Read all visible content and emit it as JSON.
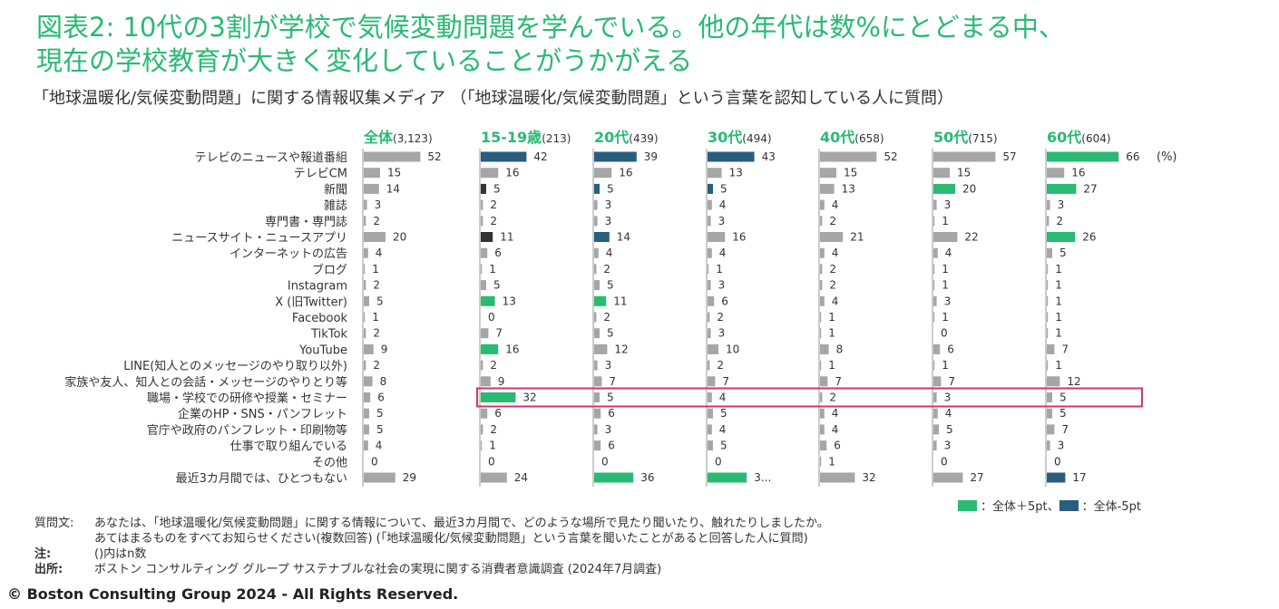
{
  "title_line1": "図表2: 10代の3割が学校で気候変動問題を学んでいる。他の年代は数%にとどまる中、",
  "title_line2": "現在の学校教育が大きく変化していることがうかがえる",
  "subtitle": "「地球温暖化/気候変動問題」に関する情報収集メディア （「地球温暖化/気候変動問題」という言葉を認知している人に質問）",
  "colors": {
    "base": "#a6a6a6",
    "plus": "#29ba74",
    "minus": "#295e7e",
    "dark": "#333333",
    "highlight": "#d6336c",
    "title": "#29ba74"
  },
  "legend": {
    "plus_label": "：全体＋5pt、",
    "minus_label": "：全体-5pt"
  },
  "notes": {
    "q_label": "質問文:",
    "q_text1": "あなたは、「地球温暖化/気候変動問題」に関する情報について、最近3カ月間で、どのような場所で見たり聞いたり、触れたりしましたか。",
    "q_text2": "あてはまるものをすべてお知らせください(複数回答) (「地球温暖化/気候変動問題」という言葉を聞いたことがあると回答した人に質問)",
    "note_label": "注:",
    "note_text": "()内はn数",
    "source_label": "出所:",
    "source_text": "ボストン コンサルティング グループ サステナブルな社会の実現に関する消費者意識調査 (2024年7月調査)"
  },
  "copyright": "© Boston Consulting Group 2024 - All Rights Reserved.",
  "chart_data": {
    "type": "bar",
    "unit": "(%)",
    "highlight_category": "職場・学校での研修や授業・セミナー",
    "categories": [
      "テレビのニュースや報道番組",
      "テレビCM",
      "新聞",
      "雑誌",
      "専門書・専門誌",
      "ニュースサイト・ニュースアプリ",
      "インターネットの広告",
      "ブログ",
      "Instagram",
      "X (旧Twitter)",
      "Facebook",
      "TikTok",
      "YouTube",
      "LINE(知人とのメッセージのやり取り以外)",
      "家族や友人、知人との会話・メッセージのやりとり等",
      "職場・学校での研修や授業・セミナー",
      "企業のHP・SNS・パンフレット",
      "官庁や政府のパンフレット・印刷物等",
      "仕事で取り組んでいる",
      "その他",
      "最近3カ月間では、ひとつもない"
    ],
    "series": [
      {
        "name": "全体",
        "n": "(3,123)",
        "values": [
          52,
          15,
          14,
          3,
          2,
          20,
          4,
          1,
          2,
          5,
          1,
          2,
          9,
          2,
          8,
          6,
          5,
          5,
          4,
          0,
          29
        ],
        "styles": [
          "b",
          "b",
          "b",
          "b",
          "b",
          "b",
          "b",
          "b",
          "b",
          "b",
          "b",
          "b",
          "b",
          "b",
          "b",
          "b",
          "b",
          "b",
          "b",
          "b",
          "b"
        ]
      },
      {
        "name": "15-19歳",
        "n": "(213)",
        "values": [
          42,
          16,
          5,
          2,
          2,
          11,
          6,
          1,
          5,
          13,
          0,
          7,
          16,
          2,
          9,
          32,
          6,
          2,
          1,
          0,
          24
        ],
        "styles": [
          "m",
          "b",
          "d",
          "b",
          "b",
          "d",
          "b",
          "b",
          "b",
          "p",
          "b",
          "b",
          "p",
          "b",
          "b",
          "p",
          "b",
          "b",
          "b",
          "b",
          "b"
        ]
      },
      {
        "name": "20代",
        "n": "(439)",
        "values": [
          39,
          16,
          5,
          3,
          3,
          14,
          4,
          2,
          5,
          11,
          2,
          5,
          12,
          3,
          7,
          5,
          6,
          3,
          6,
          0,
          36
        ],
        "styles": [
          "m",
          "b",
          "m",
          "b",
          "b",
          "m",
          "b",
          "b",
          "b",
          "p",
          "b",
          "b",
          "b",
          "b",
          "b",
          "b",
          "b",
          "b",
          "b",
          "b",
          "p"
        ]
      },
      {
        "name": "30代",
        "n": "(494)",
        "values": [
          43,
          13,
          5,
          4,
          3,
          16,
          4,
          1,
          3,
          6,
          2,
          3,
          10,
          2,
          7,
          4,
          5,
          4,
          5,
          0,
          36
        ],
        "labels": {
          "20": "3..."
        },
        "styles": [
          "m",
          "b",
          "m",
          "b",
          "b",
          "b",
          "b",
          "b",
          "b",
          "b",
          "b",
          "b",
          "b",
          "b",
          "b",
          "b",
          "b",
          "b",
          "b",
          "b",
          "p"
        ]
      },
      {
        "name": "40代",
        "n": "(658)",
        "values": [
          52,
          15,
          13,
          4,
          2,
          21,
          4,
          2,
          2,
          4,
          1,
          1,
          8,
          1,
          7,
          2,
          4,
          4,
          6,
          1,
          32
        ],
        "styles": [
          "b",
          "b",
          "b",
          "b",
          "b",
          "b",
          "b",
          "b",
          "b",
          "b",
          "b",
          "b",
          "b",
          "b",
          "b",
          "b",
          "b",
          "b",
          "b",
          "b",
          "b"
        ]
      },
      {
        "name": "50代",
        "n": "(715)",
        "values": [
          57,
          15,
          20,
          3,
          1,
          22,
          4,
          1,
          1,
          3,
          1,
          0,
          6,
          1,
          7,
          3,
          4,
          5,
          3,
          0,
          27
        ],
        "styles": [
          "b",
          "b",
          "p",
          "b",
          "b",
          "b",
          "b",
          "b",
          "b",
          "b",
          "b",
          "b",
          "b",
          "b",
          "b",
          "b",
          "b",
          "b",
          "b",
          "b",
          "b"
        ]
      },
      {
        "name": "60代",
        "n": "(604)",
        "values": [
          66,
          16,
          27,
          3,
          2,
          26,
          5,
          1,
          1,
          1,
          1,
          1,
          7,
          1,
          12,
          5,
          5,
          7,
          3,
          0,
          17
        ],
        "styles": [
          "p",
          "b",
          "p",
          "b",
          "b",
          "p",
          "b",
          "b",
          "b",
          "b",
          "b",
          "b",
          "b",
          "b",
          "b",
          "b",
          "b",
          "b",
          "b",
          "b",
          "m"
        ]
      }
    ]
  }
}
